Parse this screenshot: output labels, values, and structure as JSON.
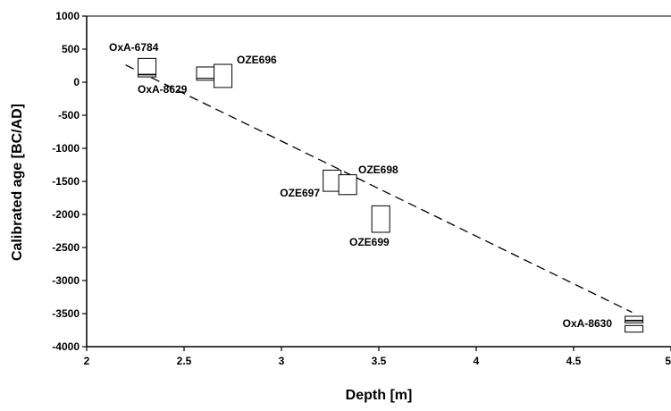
{
  "chart_data": {
    "type": "scatter",
    "xlabel": "Depth [m]",
    "ylabel": "Calibrated age [BC/AD]",
    "xlim": [
      2,
      5
    ],
    "ylim": [
      -4000,
      1000
    ],
    "xticks": [
      2,
      2.5,
      3,
      3.5,
      4,
      4.5,
      5
    ],
    "xtick_labels": [
      "2",
      "2.5",
      "3",
      "3.5",
      "4",
      "4.5",
      "5"
    ],
    "yticks": [
      1000,
      500,
      0,
      -500,
      -1000,
      -1500,
      -2000,
      -2500,
      -3000,
      -3500,
      -4000
    ],
    "ytick_labels": [
      "1000",
      "500",
      "0",
      "-500",
      "-1000",
      "-1500",
      "-2000",
      "-2500",
      "-3000",
      "-3500",
      "-4000"
    ],
    "grid": false,
    "samples": [
      {
        "label": "OxA-6784",
        "depth": 2.31,
        "age_ranges": [
          [
            120,
            360
          ]
        ]
      },
      {
        "label": "OxA-8629",
        "depth": 2.31,
        "age_ranges": [
          [
            80,
            110
          ]
        ]
      },
      {
        "label": "",
        "depth": 2.61,
        "age_ranges": [
          [
            30,
            60
          ],
          [
            60,
            230
          ]
        ]
      },
      {
        "label": "OZE696",
        "depth": 2.7,
        "age_ranges": [
          [
            -80,
            270
          ]
        ]
      },
      {
        "label": "OZE697",
        "depth": 3.26,
        "age_ranges": [
          [
            -1650,
            -1330
          ]
        ]
      },
      {
        "label": "OZE698",
        "depth": 3.34,
        "age_ranges": [
          [
            -1700,
            -1400
          ]
        ]
      },
      {
        "label": "OZE699",
        "depth": 3.51,
        "age_ranges": [
          [
            -2270,
            -1870
          ]
        ]
      },
      {
        "label": "OxA-8630",
        "depth": 4.81,
        "age_ranges": [
          [
            -3600,
            -3540
          ],
          [
            -3640,
            -3610
          ],
          [
            -3780,
            -3680
          ]
        ]
      }
    ],
    "trend_line": {
      "x": [
        2.2,
        4.8
      ],
      "y": [
        260,
        -3480
      ],
      "style": "dashed"
    }
  }
}
